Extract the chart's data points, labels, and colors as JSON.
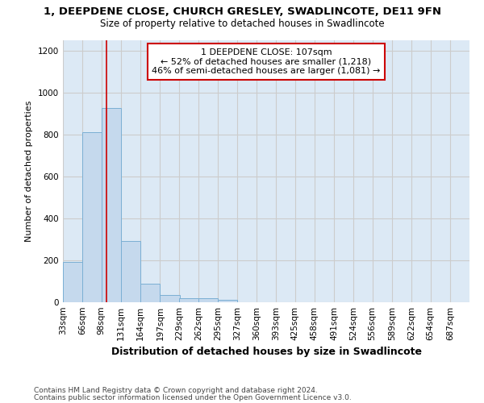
{
  "title": "1, DEEPDENE CLOSE, CHURCH GRESLEY, SWADLINCOTE, DE11 9FN",
  "subtitle": "Size of property relative to detached houses in Swadlincote",
  "xlabel": "Distribution of detached houses by size in Swadlincote",
  "ylabel": "Number of detached properties",
  "footnote1": "Contains HM Land Registry data © Crown copyright and database right 2024.",
  "footnote2": "Contains public sector information licensed under the Open Government Licence v3.0.",
  "annotation_title": "1 DEEPDENE CLOSE: 107sqm",
  "annotation_line1": "← 52% of detached houses are smaller (1,218)",
  "annotation_line2": "46% of semi-detached houses are larger (1,081) →",
  "property_size_sqm": 107,
  "bar_left_edges": [
    33,
    66,
    98,
    131,
    164,
    197,
    229,
    262,
    295,
    327,
    360,
    393,
    425,
    458,
    491,
    524,
    556,
    589,
    622,
    654
  ],
  "bar_heights": [
    193,
    810,
    928,
    292,
    87,
    35,
    18,
    18,
    11,
    0,
    0,
    0,
    0,
    0,
    0,
    0,
    0,
    0,
    0,
    0
  ],
  "bin_width": 33,
  "bar_color": "#c5d9ed",
  "bar_edge_color": "#7bafd4",
  "vline_color": "#cc0000",
  "vline_x": 107,
  "annotation_box_edgecolor": "#cc0000",
  "annotation_box_facecolor": "#ffffff",
  "ylim": [
    0,
    1250
  ],
  "xlim": [
    33,
    720
  ],
  "ytick_values": [
    0,
    200,
    400,
    600,
    800,
    1000,
    1200
  ],
  "xtick_labels": [
    "33sqm",
    "66sqm",
    "98sqm",
    "131sqm",
    "164sqm",
    "197sqm",
    "229sqm",
    "262sqm",
    "295sqm",
    "327sqm",
    "360sqm",
    "393sqm",
    "425sqm",
    "458sqm",
    "491sqm",
    "524sqm",
    "556sqm",
    "589sqm",
    "622sqm",
    "654sqm",
    "687sqm"
  ],
  "xtick_positions": [
    33,
    66,
    98,
    131,
    164,
    197,
    229,
    262,
    295,
    327,
    360,
    393,
    425,
    458,
    491,
    524,
    556,
    589,
    622,
    654,
    687
  ],
  "grid_color": "#cccccc",
  "bg_color": "#dce9f5",
  "title_fontsize": 9.5,
  "subtitle_fontsize": 8.5,
  "xlabel_fontsize": 9,
  "ylabel_fontsize": 8,
  "tick_fontsize": 7.5,
  "annotation_fontsize": 8,
  "footnote_fontsize": 6.5
}
